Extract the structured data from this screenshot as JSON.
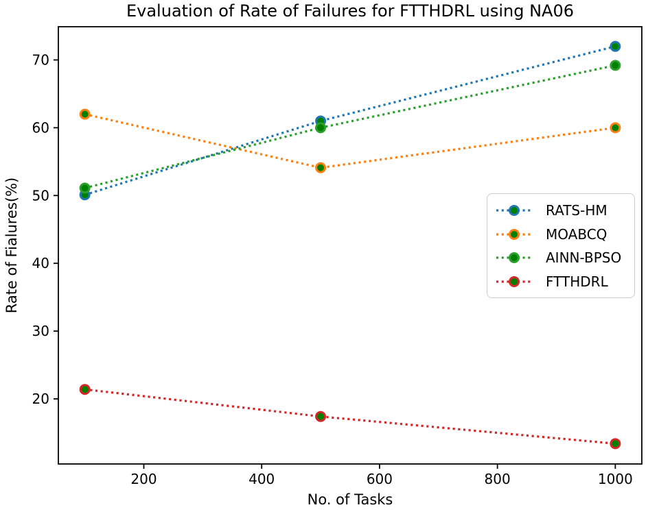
{
  "figure": {
    "background_color": "#ffffff",
    "axes_color": "#000000",
    "tick_label_color": "#000000"
  },
  "chart_data": {
    "type": "line",
    "title": "Evaluation of Rate of Failures for FTTHDRL using NA06",
    "xlabel": "No. of Tasks",
    "ylabel": "Rate of Fialures(%)",
    "line_style": "dotted",
    "grid": false,
    "x": [
      100,
      500,
      1000
    ],
    "series": [
      {
        "name": "RATS-HM",
        "color": "#1f77b4",
        "values": [
          50.1,
          61.0,
          72.0
        ]
      },
      {
        "name": "MOABCQ",
        "color": "#ff7f0e",
        "values": [
          62.0,
          54.1,
          60.0
        ]
      },
      {
        "name": "AINN-BPSO",
        "color": "#2ca02c",
        "values": [
          51.1,
          60.0,
          69.2
        ]
      },
      {
        "name": "FTTHDRL",
        "color": "#d62728",
        "values": [
          21.4,
          17.4,
          13.4
        ]
      }
    ],
    "marker": {
      "shape": "circle",
      "face_color": "#008000"
    },
    "xlim": [
      55,
      1045
    ],
    "ylim": [
      10.4,
      74.9
    ],
    "x_ticks": [
      "200",
      "400",
      "600",
      "800",
      "1000"
    ],
    "x_tick_values": [
      200,
      400,
      600,
      800,
      1000
    ],
    "y_ticks": [
      "20",
      "30",
      "40",
      "50",
      "60",
      "70"
    ],
    "y_tick_values": [
      20,
      30,
      40,
      50,
      60,
      70
    ],
    "legend": {
      "position": "center right",
      "labels": [
        "RATS-HM",
        "MOABCQ",
        "AINN-BPSO",
        "FTTHDRL"
      ]
    }
  }
}
